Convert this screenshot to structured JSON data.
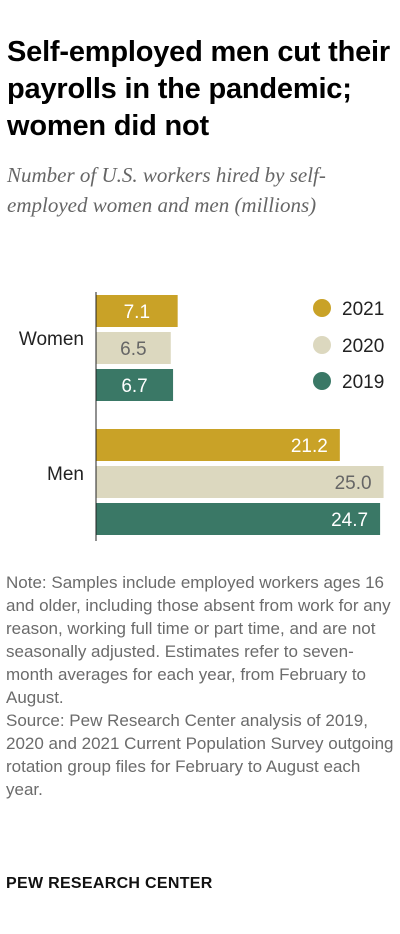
{
  "title": "Self-employed men cut their payrolls in the pandemic; women did not",
  "subtitle": "Number of U.S. workers hired by self-employed women and men (millions)",
  "note": "Note: Samples include employed workers ages 16 and older, including those absent from work for any reason, working full time or part time, and are not seasonally adjusted. Estimates refer to seven-month averages for each year, from February to August.",
  "source": "Source: Pew Research Center analysis of 2019, 2020 and 2021 Current Population Survey outgoing rotation group files for February to August each year.",
  "brand": "PEW RESEARCH CENTER",
  "colors": {
    "y2021": "#c9a227",
    "y2020": "#dcd8bf",
    "y2019": "#3a7866",
    "axis": "#222222"
  },
  "chart_data": {
    "type": "bar",
    "orientation": "horizontal",
    "categories": [
      "Women",
      "Men"
    ],
    "series": [
      {
        "name": "2021",
        "values": [
          7.1,
          21.2
        ],
        "color": "#c9a227",
        "label_color": "#ffffff"
      },
      {
        "name": "2020",
        "values": [
          6.5,
          25.0
        ],
        "color": "#dcd8bf",
        "label_color": "#666666"
      },
      {
        "name": "2019",
        "values": [
          6.7,
          24.7
        ],
        "color": "#3a7866",
        "label_color": "#ffffff"
      }
    ],
    "value_labels": [
      [
        "7.1",
        "6.5",
        "6.7"
      ],
      [
        "21.2",
        "25.0",
        "24.7"
      ]
    ],
    "xlim": [
      0,
      25.3
    ],
    "legend": "right",
    "grid": false
  }
}
